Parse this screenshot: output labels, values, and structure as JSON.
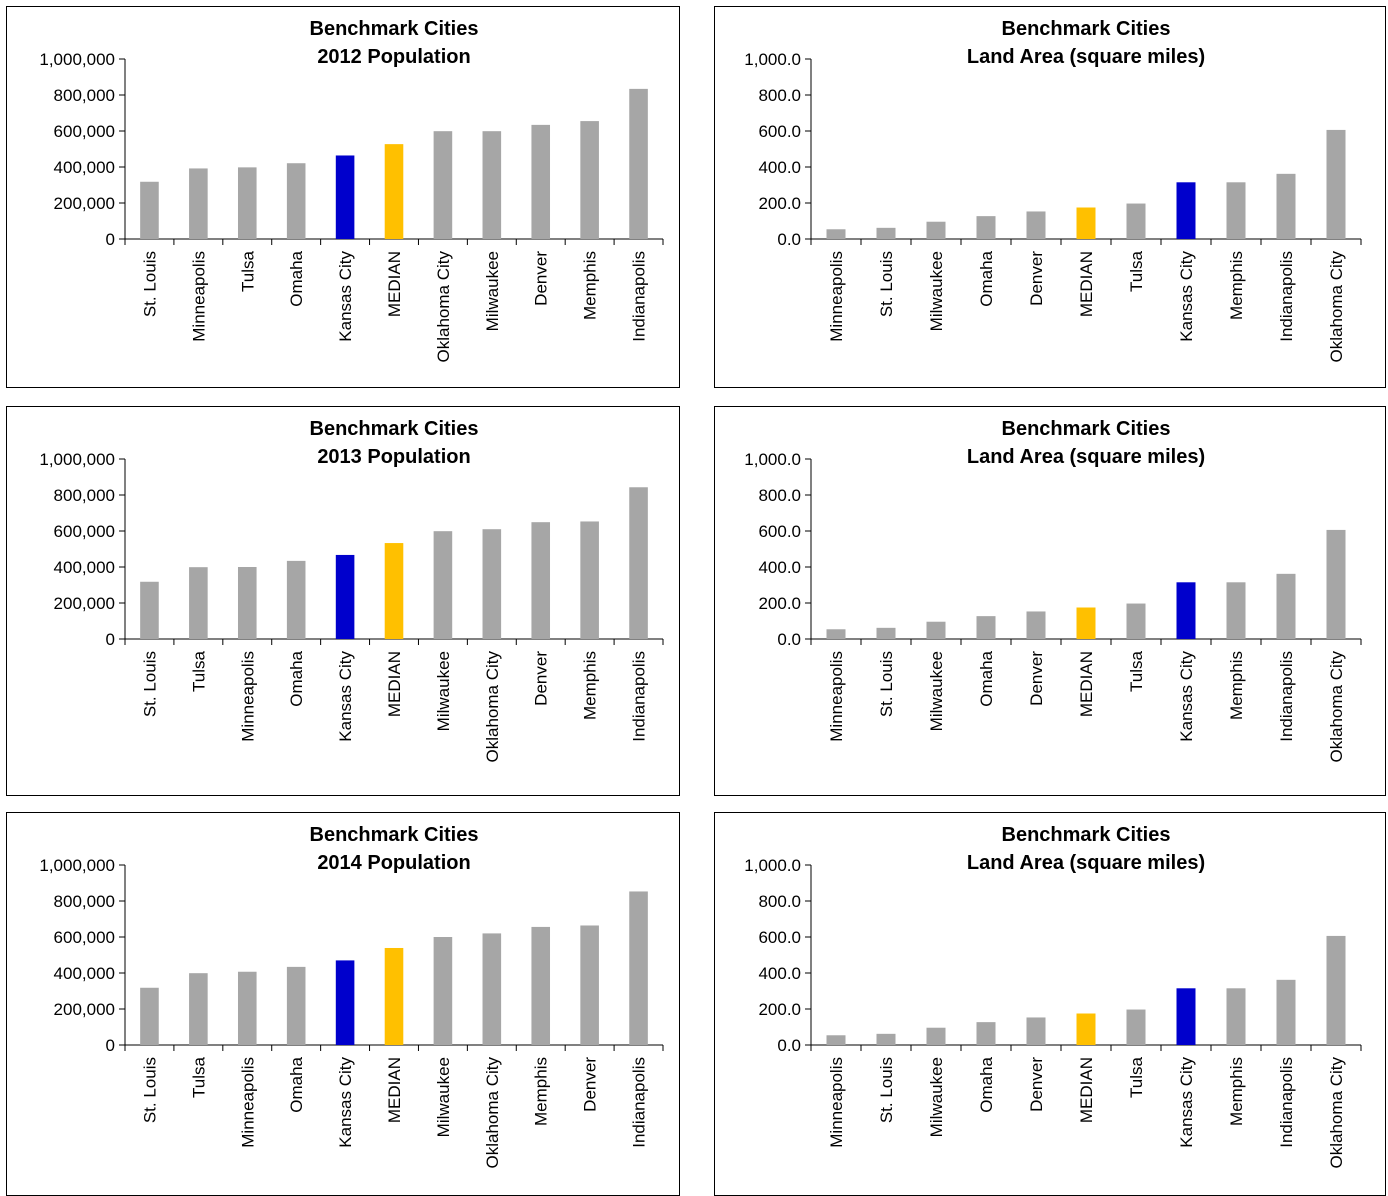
{
  "colors": {
    "default": "#A6A6A6",
    "highlight": "#0000CC",
    "median": "#FFC000",
    "axis": "#000000"
  },
  "chart_data": [
    {
      "type": "bar",
      "title": "Benchmark Cities",
      "subtitle": "2012 Population",
      "ylim": [
        0,
        1000000
      ],
      "yticks": [
        "0",
        "200,000",
        "400,000",
        "600,000",
        "800,000",
        "1,000,000"
      ],
      "categories": [
        "St. Louis",
        "Minneapolis",
        "Tulsa",
        "Omaha",
        "Kansas City",
        "MEDIAN",
        "Oklahoma City",
        "Milwaukee",
        "Denver",
        "Memphis",
        "Indianapolis"
      ],
      "values": [
        318000,
        392000,
        398000,
        421000,
        464000,
        527000,
        599000,
        599000,
        634000,
        655000,
        834000
      ],
      "highlight": "Kansas City",
      "median": "MEDIAN"
    },
    {
      "type": "bar",
      "title": "Benchmark Cities",
      "subtitle": "Land Area (square miles)",
      "ylim": [
        0,
        1000
      ],
      "yticks": [
        "0.0",
        "200.0",
        "400.0",
        "600.0",
        "800.0",
        "1,000.0"
      ],
      "categories": [
        "Minneapolis",
        "St. Louis",
        "Milwaukee",
        "Omaha",
        "Denver",
        "MEDIAN",
        "Tulsa",
        "Kansas City",
        "Memphis",
        "Indianapolis",
        "Oklahoma City"
      ],
      "values": [
        54,
        62,
        96,
        127,
        153,
        175,
        197,
        315,
        315,
        362,
        606
      ],
      "highlight": "Kansas City",
      "median": "MEDIAN"
    },
    {
      "type": "bar",
      "title": "Benchmark Cities",
      "subtitle": "2013 Population",
      "ylim": [
        0,
        1000000
      ],
      "yticks": [
        "0",
        "200,000",
        "400,000",
        "600,000",
        "800,000",
        "1,000,000"
      ],
      "categories": [
        "St. Louis",
        "Tulsa",
        "Minneapolis",
        "Omaha",
        "Kansas City",
        "MEDIAN",
        "Milwaukee",
        "Oklahoma City",
        "Denver",
        "Memphis",
        "Indianapolis"
      ],
      "values": [
        318000,
        399000,
        400000,
        434000,
        467000,
        533000,
        599000,
        610000,
        649000,
        653000,
        843000
      ],
      "highlight": "Kansas City",
      "median": "MEDIAN"
    },
    {
      "type": "bar",
      "title": "Benchmark Cities",
      "subtitle": "Land Area (square miles)",
      "ylim": [
        0,
        1000
      ],
      "yticks": [
        "0.0",
        "200.0",
        "400.0",
        "600.0",
        "800.0",
        "1,000.0"
      ],
      "categories": [
        "Minneapolis",
        "St. Louis",
        "Milwaukee",
        "Omaha",
        "Denver",
        "MEDIAN",
        "Tulsa",
        "Kansas City",
        "Memphis",
        "Indianapolis",
        "Oklahoma City"
      ],
      "values": [
        54,
        62,
        96,
        127,
        153,
        175,
        197,
        315,
        315,
        362,
        606
      ],
      "highlight": "Kansas City",
      "median": "MEDIAN"
    },
    {
      "type": "bar",
      "title": "Benchmark Cities",
      "subtitle": "2014 Population",
      "ylim": [
        0,
        1000000
      ],
      "yticks": [
        "0",
        "200,000",
        "400,000",
        "600,000",
        "800,000",
        "1,000,000"
      ],
      "categories": [
        "St. Louis",
        "Tulsa",
        "Minneapolis",
        "Omaha",
        "Kansas City",
        "MEDIAN",
        "Milwaukee",
        "Oklahoma City",
        "Memphis",
        "Denver",
        "Indianapolis"
      ],
      "values": [
        318000,
        399000,
        407000,
        434000,
        470000,
        539000,
        600000,
        620000,
        656000,
        664000,
        853000
      ],
      "highlight": "Kansas City",
      "median": "MEDIAN"
    },
    {
      "type": "bar",
      "title": "Benchmark Cities",
      "subtitle": "Land Area (square miles)",
      "ylim": [
        0,
        1000
      ],
      "yticks": [
        "0.0",
        "200.0",
        "400.0",
        "600.0",
        "800.0",
        "1,000.0"
      ],
      "categories": [
        "Minneapolis",
        "St. Louis",
        "Milwaukee",
        "Omaha",
        "Denver",
        "MEDIAN",
        "Tulsa",
        "Kansas City",
        "Memphis",
        "Indianapolis",
        "Oklahoma City"
      ],
      "values": [
        54,
        62,
        96,
        127,
        153,
        175,
        197,
        315,
        315,
        362,
        606
      ],
      "highlight": "Kansas City",
      "median": "MEDIAN"
    }
  ]
}
